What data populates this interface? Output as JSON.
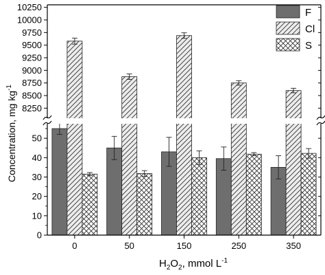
{
  "chart_data": {
    "type": "bar",
    "categories": [
      "0",
      "50",
      "150",
      "250",
      "350"
    ],
    "xlabel": {
      "prefix": "H",
      "prefix_sub": "2",
      "middle": "O",
      "middle_sub": "2",
      "suffix": ", mmol L",
      "suffix_sup": "-1"
    },
    "ylabel": {
      "main": "Concentration, mg kg",
      "sup": "-1"
    },
    "y_axis_break": true,
    "ylim_lower": [
      0,
      57.5
    ],
    "ylim_upper": [
      8050,
      10300
    ],
    "yticks_lower": [
      "0",
      "10",
      "20",
      "30",
      "40",
      "50"
    ],
    "yticks_upper": [
      "8250",
      "8500",
      "8750",
      "9000",
      "9250",
      "9500",
      "9750",
      "10000",
      "10250"
    ],
    "series": [
      {
        "name": "F",
        "values": [
          55,
          45,
          43,
          39.5,
          35
        ],
        "errors": [
          3,
          6,
          7.5,
          6,
          6
        ],
        "color": "#6e6e6e",
        "pattern": "solid"
      },
      {
        "name": "Cl",
        "values": [
          9580,
          8875,
          9690,
          8750,
          8600
        ],
        "errors": [
          60,
          55,
          55,
          45,
          45
        ],
        "color": "#ececec",
        "pattern": "diagonal"
      },
      {
        "name": "S",
        "values": [
          31.5,
          31.8,
          40,
          41.8,
          42.2
        ],
        "errors": [
          0.8,
          1.5,
          3.5,
          0.8,
          2.5
        ],
        "color": "#ffffff",
        "pattern": "crosshatch"
      }
    ],
    "legend_position": "top-right",
    "grid": false
  }
}
